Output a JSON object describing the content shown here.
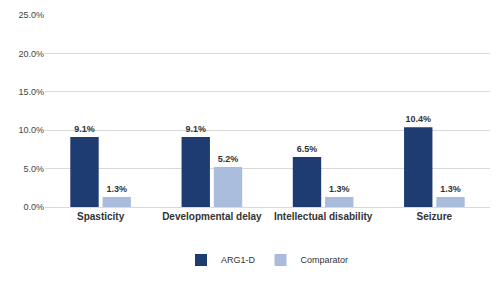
{
  "chart_data": {
    "type": "bar",
    "categories": [
      "Spasticity",
      "Developmental delay",
      "Intellectual disability",
      "Seizure"
    ],
    "series": [
      {
        "name": "ARG1-D",
        "color": "#1f3c72",
        "values": [
          9.1,
          9.1,
          6.5,
          10.4
        ],
        "value_labels": [
          "9.1%",
          "9.1%",
          "6.5%",
          "10.4%"
        ]
      },
      {
        "name": "Comparator",
        "color": "#a9bcdc",
        "values": [
          1.3,
          5.2,
          1.3,
          1.3
        ],
        "value_labels": [
          "1.3%",
          "5.2%",
          "1.3%",
          "1.3%"
        ]
      }
    ],
    "ylim": [
      0,
      25
    ],
    "yticks": [
      {
        "value": 0,
        "label": "0.0%"
      },
      {
        "value": 5,
        "label": "5.0%"
      },
      {
        "value": 10,
        "label": "10.0%"
      },
      {
        "value": 15,
        "label": "15.0%"
      },
      {
        "value": 20,
        "label": "20.0%"
      },
      {
        "value": 25,
        "label": "25.0%"
      }
    ],
    "grid": true,
    "legend": "bottom",
    "data_labels": true
  }
}
